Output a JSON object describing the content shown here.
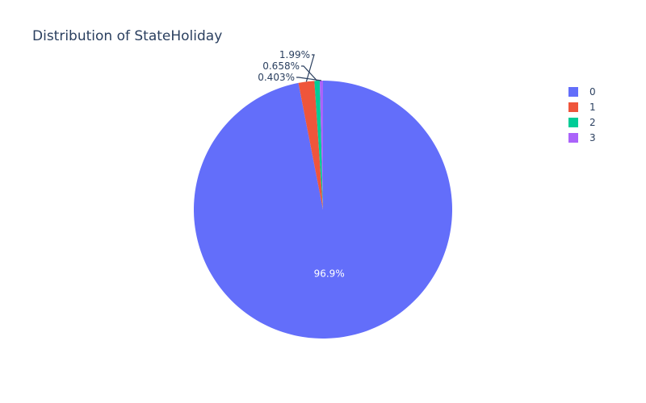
{
  "chart_data": {
    "type": "pie",
    "title": "Distribution of StateHoliday",
    "categories": [
      "0",
      "1",
      "2",
      "3"
    ],
    "values": [
      96.9,
      1.99,
      0.658,
      0.403
    ],
    "labels": [
      "96.9%",
      "1.99%",
      "0.658%",
      "0.403%"
    ],
    "colors": [
      "#636efa",
      "#EF553B",
      "#00cc96",
      "#ab63fa"
    ],
    "legend": {
      "placement": "top-right",
      "entries": [
        "0",
        "1",
        "2",
        "3"
      ]
    },
    "direction": "clockwise",
    "start": "top"
  }
}
